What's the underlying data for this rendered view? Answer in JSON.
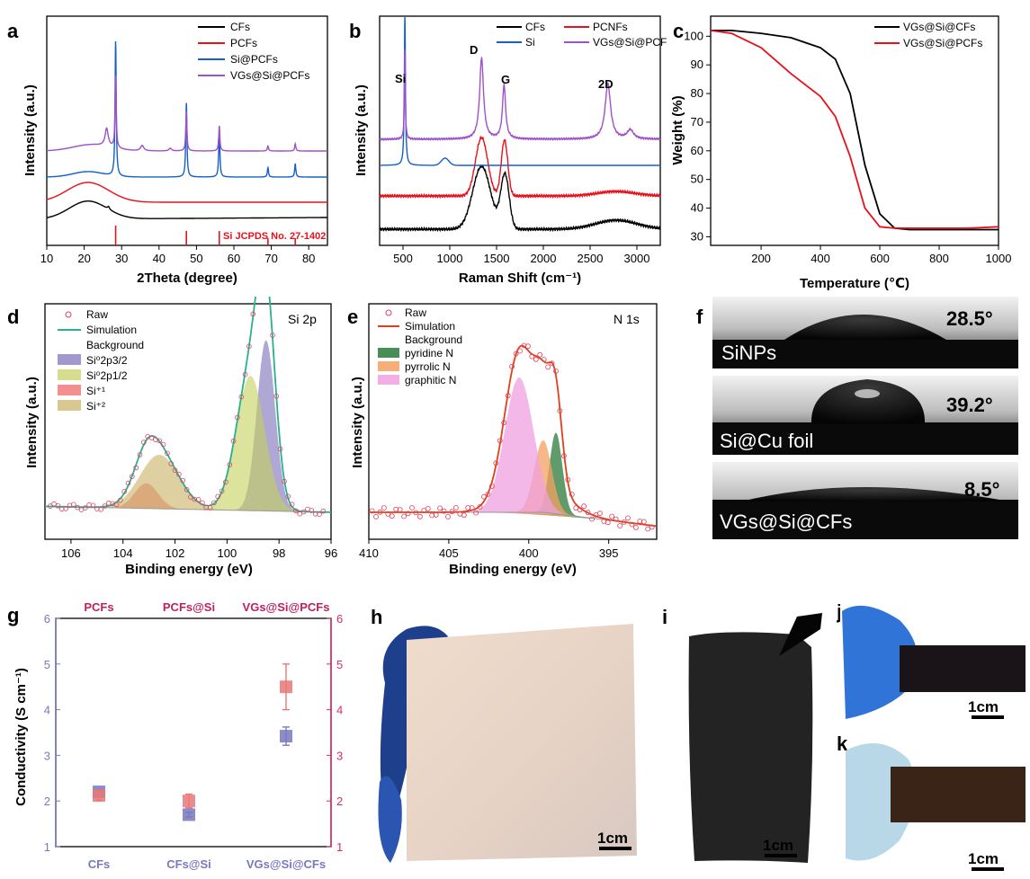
{
  "panels": {
    "a": {
      "label": "a",
      "xlabel": "2Theta (degree)",
      "ylabel": "Intensity (a.u.)",
      "xticks": [
        "10",
        "20",
        "30",
        "40",
        "50",
        "60",
        "70",
        "80"
      ],
      "legend": [
        {
          "name": "CFs",
          "color": "#000000"
        },
        {
          "name": "PCFs",
          "color": "#e8101a"
        },
        {
          "name": "Si@PCFs",
          "color": "#1460c8"
        },
        {
          "name": "VGs@Si@PCFs",
          "color": "#a050c8"
        }
      ],
      "ref_label": "Si JCPDS No. 27-1402"
    },
    "b": {
      "label": "b",
      "xlabel": "Raman Shift (cm⁻¹)",
      "ylabel": "Intensity (a.u.)",
      "xticks": [
        "500",
        "1000",
        "1500",
        "2000",
        "2500",
        "3000"
      ],
      "legend": [
        {
          "name": "CFs",
          "color": "#000000"
        },
        {
          "name": "PCNFs",
          "color": "#e8101a"
        },
        {
          "name": "Si",
          "color": "#1460c8"
        },
        {
          "name": "VGs@Si@PCFs",
          "color": "#a050c8"
        }
      ],
      "peaks": [
        "Si",
        "D",
        "G",
        "2D"
      ]
    },
    "c": {
      "label": "c",
      "xlabel": "Temperature (℃)",
      "ylabel": "Weight (%)",
      "xticks": [
        "200",
        "400",
        "600",
        "800",
        "1000"
      ],
      "yticks": [
        "30",
        "40",
        "50",
        "60",
        "70",
        "80",
        "90",
        "100"
      ],
      "legend": [
        {
          "name": "VGs@Si@CFs",
          "color": "#000000"
        },
        {
          "name": "VGs@Si@PCFs",
          "color": "#e8101a"
        }
      ]
    },
    "d": {
      "label": "d",
      "xlabel": "Binding energy (eV)",
      "ylabel": "Intensity (a.u.)",
      "xticks": [
        "106",
        "104",
        "102",
        "100",
        "98",
        "96"
      ],
      "title": "Si 2p",
      "legend": [
        "Raw",
        "Simulation",
        "Background",
        "Si⁰2p3/2",
        "Si⁰2p1/2",
        "Si⁺¹",
        "Si⁺²"
      ]
    },
    "e": {
      "label": "e",
      "xlabel": "Binding energy (eV)",
      "ylabel": "Intensity (a.u.)",
      "xticks": [
        "410",
        "405",
        "400",
        "395"
      ],
      "title": "N 1s",
      "legend": [
        "Raw",
        "Simulation",
        "Background",
        "pyridine N",
        "pyrrolic N",
        "graphitic N"
      ]
    },
    "f": {
      "label": "f",
      "rows": [
        {
          "name": "SiNPs",
          "angle": "28.5°"
        },
        {
          "name": "Si@Cu foil",
          "angle": "39.2°"
        },
        {
          "name": "VGs@Si@CFs",
          "angle": "8.5°"
        }
      ]
    },
    "g": {
      "label": "g",
      "ylabel": "Conductivity (S cm⁻¹)",
      "top_categories": [
        "PCFs",
        "PCFs@Si",
        "VGs@Si@PCFs"
      ],
      "bottom_categories": [
        "CFs",
        "CFs@Si",
        "VGs@Si@CFs"
      ],
      "yticks": [
        "1",
        "2",
        "3",
        "4",
        "5",
        "6"
      ]
    },
    "h": {
      "label": "h",
      "scale": "1cm"
    },
    "i": {
      "label": "i",
      "scale": "1cm"
    },
    "j": {
      "label": "j",
      "scale": "1cm"
    },
    "k": {
      "label": "k",
      "scale": "1cm"
    }
  },
  "chart_data": [
    {
      "panel": "a",
      "type": "line",
      "xlabel": "2Theta (degree)",
      "ylabel": "Intensity (a.u.)",
      "xlim": [
        10,
        85
      ],
      "series": [
        {
          "name": "CFs",
          "peaks_2theta": [
            21,
            26.5
          ]
        },
        {
          "name": "PCFs",
          "peaks_2theta": [
            21
          ]
        },
        {
          "name": "Si@PCFs",
          "peaks_2theta": [
            28.4,
            47.3,
            56.1,
            69.1,
            76.4
          ]
        },
        {
          "name": "VGs@Si@PCFs",
          "peaks_2theta": [
            26,
            28.4,
            35.5,
            47.3,
            56.1,
            69.1,
            76.4
          ]
        }
      ],
      "reference": {
        "name": "Si JCPDS No. 27-1402",
        "positions": [
          28.4,
          47.3,
          56.1,
          69.1,
          76.4
        ]
      }
    },
    {
      "panel": "b",
      "type": "line",
      "xlabel": "Raman Shift (cm⁻¹)",
      "ylabel": "Intensity (a.u.)",
      "xlim": [
        250,
        3250
      ],
      "series": [
        {
          "name": "CFs",
          "peaks": [
            1340,
            1590
          ]
        },
        {
          "name": "PCNFs",
          "peaks": [
            1340,
            1590
          ]
        },
        {
          "name": "Si",
          "peaks": [
            520,
            950
          ]
        },
        {
          "name": "VGs@Si@PCFs",
          "peaks": [
            520,
            1340,
            1580,
            2690,
            2930
          ]
        }
      ]
    },
    {
      "panel": "c",
      "type": "line",
      "xlabel": "Temperature (℃)",
      "ylabel": "Weight (%)",
      "xlim": [
        30,
        1000
      ],
      "ylim": [
        27,
        107
      ],
      "series": [
        {
          "name": "VGs@Si@CFs",
          "x": [
            30,
            100,
            200,
            300,
            400,
            450,
            500,
            550,
            600,
            650,
            700,
            800,
            900,
            1000
          ],
          "y": [
            102,
            102,
            101,
            99.5,
            96,
            92,
            80,
            55,
            38,
            33,
            32.5,
            32.5,
            32.5,
            32.5
          ]
        },
        {
          "name": "VGs@Si@PCFs",
          "x": [
            30,
            100,
            200,
            300,
            400,
            450,
            500,
            550,
            600,
            650,
            700,
            800,
            900,
            1000
          ],
          "y": [
            102,
            101,
            96,
            87,
            79,
            72,
            58,
            40,
            33.5,
            33,
            33,
            33,
            33,
            33.5
          ]
        }
      ]
    },
    {
      "panel": "d",
      "type": "line",
      "title": "Si 2p",
      "xlabel": "Binding energy (eV)",
      "xlim": [
        107,
        96
      ],
      "components": [
        {
          "name": "Si⁰2p3/2",
          "center": 98.5
        },
        {
          "name": "Si⁰2p1/2",
          "center": 99.1
        },
        {
          "name": "Si⁺¹",
          "center": 103.1
        },
        {
          "name": "Si⁺²",
          "center": 102.6
        }
      ]
    },
    {
      "panel": "e",
      "type": "line",
      "title": "N 1s",
      "xlabel": "Binding energy (eV)",
      "xlim": [
        410,
        392
      ],
      "components": [
        {
          "name": "pyridine N",
          "center": 398.3
        },
        {
          "name": "pyrrolic N",
          "center": 399.1
        },
        {
          "name": "graphitic N",
          "center": 400.6
        }
      ]
    },
    {
      "panel": "g",
      "type": "scatter",
      "ylabel": "Conductivity (S cm⁻¹)",
      "ylim": [
        1,
        6
      ],
      "series": [
        {
          "categories": [
            "CFs",
            "CFs@Si",
            "VGs@Si@CFs"
          ],
          "values": [
            2.2,
            1.7,
            3.42
          ],
          "errors": [
            0.05,
            0.05,
            0.2
          ],
          "color": "#7878c0"
        },
        {
          "categories": [
            "PCFs",
            "PCFs@Si",
            "VGs@Si@PCFs"
          ],
          "values": [
            2.12,
            2.0,
            4.5
          ],
          "errors": [
            0.1,
            0.15,
            0.5
          ],
          "color": "#e87878"
        }
      ]
    }
  ]
}
